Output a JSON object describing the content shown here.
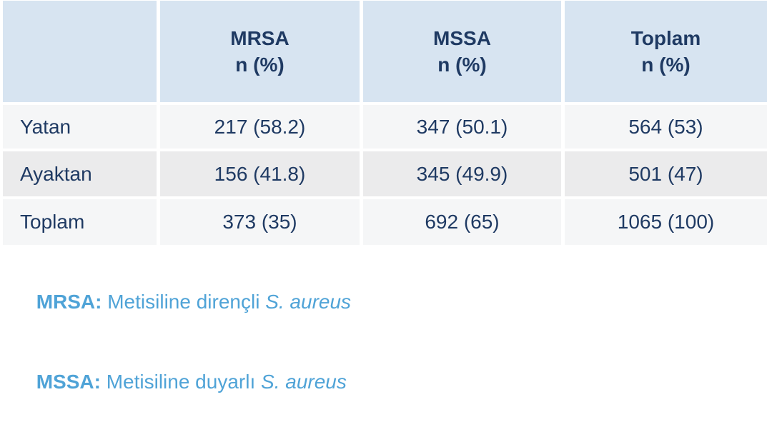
{
  "table": {
    "columns": [
      {
        "label": "",
        "sublabel": ""
      },
      {
        "label": "MRSA",
        "sublabel": "n (%)"
      },
      {
        "label": "MSSA",
        "sublabel": "n (%)"
      },
      {
        "label": "Toplam",
        "sublabel": "n (%)"
      }
    ],
    "rows": [
      {
        "cells": [
          "Yatan",
          "217 (58.2)",
          "347 (50.1)",
          "564 (53)"
        ]
      },
      {
        "cells": [
          "Ayaktan",
          "156 (41.8)",
          "345 (49.9)",
          "501 (47)"
        ]
      },
      {
        "cells": [
          "Toplam",
          "373 (35)",
          "692 (65)",
          "1065 (100)"
        ]
      }
    ]
  },
  "footnotes": [
    {
      "abbr": "MRSA:",
      "text": " Metisiline dirençli ",
      "species": "S. aureus"
    },
    {
      "abbr": "MSSA:",
      "text": " Metisiline duyarlı ",
      "species": "S. aureus"
    }
  ],
  "colors": {
    "header_bg": "#d7e4f1",
    "row_light_bg": "#f5f6f7",
    "row_dark_bg": "#ebebec",
    "text_navy": "#1f3a63",
    "footnote_blue": "#4fa3d7"
  }
}
